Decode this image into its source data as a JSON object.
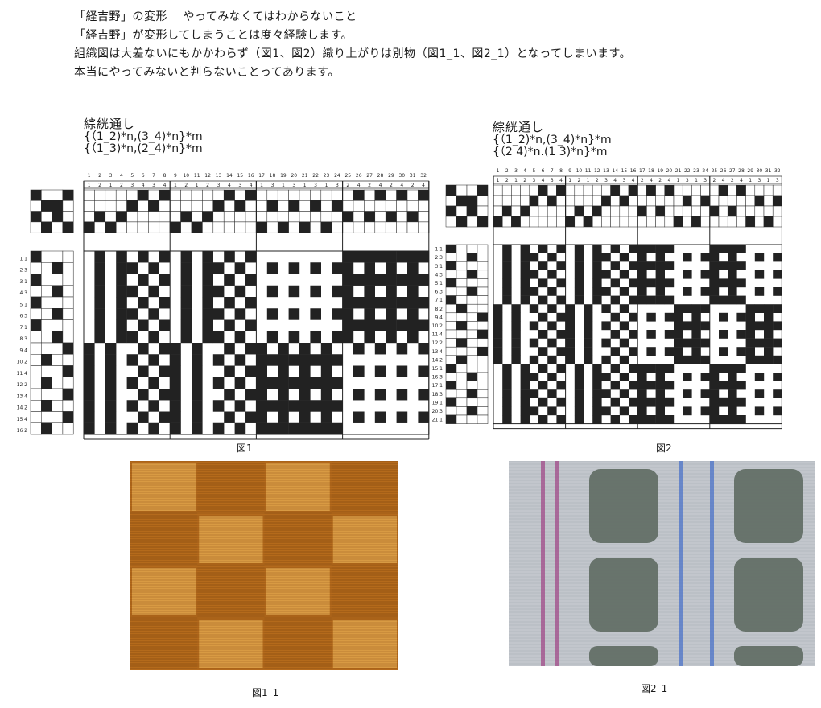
{
  "intro": {
    "heading": "「経吉野」の変形　 やってみなくてはわからないこと",
    "line1": "「経吉野」が変形してしまうことは度々経験します。",
    "line2": "組織図は大差ないにもかかわらず（図1、図2）織り上がりは別物（図1_1、図2_1）となってしまいます。",
    "line3": "本当にやってみないと判らないことってあります。"
  },
  "figure1": {
    "title": "綜絖通し",
    "formula_line1": "{（1_2)*n,(3_4)*n}*m",
    "formula_line2": "{（1_3)*n,(2_4)*n}*m",
    "caption": "図1",
    "warp_numbers": [
      "1",
      "2",
      "3",
      "4",
      "5",
      "6",
      "7",
      "8",
      "9",
      "10",
      "11",
      "12",
      "13",
      "14",
      "15",
      "16",
      "17",
      "18",
      "19",
      "20",
      "21",
      "22",
      "23",
      "24",
      "25",
      "26",
      "27",
      "28",
      "29",
      "30",
      "31",
      "32"
    ],
    "threading_shafts": [
      1,
      2,
      1,
      2,
      3,
      4,
      3,
      4,
      1,
      2,
      1,
      2,
      3,
      4,
      3,
      4,
      1,
      3,
      1,
      3,
      1,
      3,
      1,
      3,
      2,
      4,
      2,
      4,
      2,
      4,
      2,
      4
    ],
    "weft_labels": [
      "1 1",
      "2 3",
      "3 1",
      "4 3",
      "5 1",
      "6 3",
      "7 1",
      "8 3",
      "9 4",
      "10 2",
      "11 4",
      "12 2",
      "13 4",
      "14 2",
      "15 4",
      "16 2"
    ],
    "treadling": [
      1,
      3,
      1,
      3,
      1,
      3,
      1,
      3,
      4,
      2,
      4,
      2,
      4,
      2,
      4,
      2
    ],
    "tieup": [
      [
        1,
        0,
        0,
        1
      ],
      [
        0,
        1,
        1,
        0
      ],
      [
        1,
        0,
        1,
        0
      ],
      [
        0,
        1,
        0,
        1
      ]
    ],
    "group_size": 8
  },
  "figure2": {
    "title": "綜絖通し",
    "formula_line1": "{（1_2)*n,(3_4)*n}*m",
    "formula_line2": "{（2 4)*n.(1 3)*n}*m",
    "caption": "図2",
    "warp_numbers": [
      "1",
      "2",
      "3",
      "4",
      "5",
      "6",
      "7",
      "8",
      "9",
      "10",
      "11",
      "12",
      "13",
      "14",
      "15",
      "16",
      "17",
      "18",
      "19",
      "20",
      "21",
      "22",
      "23",
      "24",
      "25",
      "26",
      "27",
      "28",
      "29",
      "30",
      "31",
      "32"
    ],
    "threading_shafts": [
      1,
      2,
      1,
      2,
      3,
      4,
      3,
      4,
      1,
      2,
      1,
      2,
      3,
      4,
      3,
      4,
      2,
      4,
      2,
      4,
      1,
      3,
      1,
      3,
      2,
      4,
      2,
      4,
      1,
      3,
      1,
      3
    ],
    "weft_labels": [
      "1 1",
      "2 3",
      "3 1",
      "4 3",
      "5 1",
      "6 3",
      "7 1",
      "8 2",
      "9 4",
      "10 2",
      "11 4",
      "12 2",
      "13 4",
      "14 2",
      "15 1",
      "16 3",
      "17 1",
      "18 3",
      "19 1",
      "20 3",
      "21 1"
    ],
    "treadling": [
      1,
      3,
      1,
      3,
      1,
      3,
      1,
      2,
      4,
      2,
      4,
      2,
      4,
      2,
      1,
      3,
      1,
      3,
      1,
      3,
      1
    ],
    "tieup": [
      [
        1,
        0,
        0,
        1
      ],
      [
        0,
        1,
        1,
        0
      ],
      [
        1,
        0,
        1,
        0
      ],
      [
        0,
        1,
        0,
        1
      ]
    ],
    "group_size": 8
  },
  "photo1": {
    "caption": "図1_1",
    "colors": {
      "base": "#b46a1c",
      "light": "#dca048",
      "dark": "#6a3608"
    },
    "blocks_x": 4,
    "blocks_y": 4
  },
  "photo2": {
    "caption": "図2_1",
    "colors": {
      "base": "#c2c6cc",
      "block": "#5e6a62",
      "stripe_magenta": "#a04a88",
      "stripe_blue": "#4a72c8"
    },
    "columns": 4,
    "rows": 4
  }
}
